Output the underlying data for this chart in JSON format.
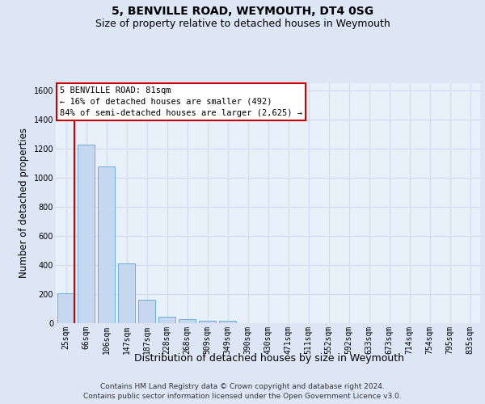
{
  "title": "5, BENVILLE ROAD, WEYMOUTH, DT4 0SG",
  "subtitle": "Size of property relative to detached houses in Weymouth",
  "xlabel": "Distribution of detached houses by size in Weymouth",
  "ylabel": "Number of detached properties",
  "categories": [
    "25sqm",
    "66sqm",
    "106sqm",
    "147sqm",
    "187sqm",
    "228sqm",
    "268sqm",
    "309sqm",
    "349sqm",
    "390sqm",
    "430sqm",
    "471sqm",
    "511sqm",
    "552sqm",
    "592sqm",
    "633sqm",
    "673sqm",
    "714sqm",
    "754sqm",
    "795sqm",
    "835sqm"
  ],
  "values": [
    205,
    1225,
    1075,
    410,
    160,
    45,
    27,
    17,
    15,
    0,
    0,
    0,
    0,
    0,
    0,
    0,
    0,
    0,
    0,
    0,
    0
  ],
  "bar_color": "#c5d8ef",
  "bar_edge_color": "#6aaed6",
  "vline_x": 0.425,
  "vline_color": "#cc0000",
  "annotation_text": "5 BENVILLE ROAD: 81sqm\n← 16% of detached houses are smaller (492)\n84% of semi-detached houses are larger (2,625) →",
  "ylim": [
    0,
    1650
  ],
  "yticks": [
    0,
    200,
    400,
    600,
    800,
    1000,
    1200,
    1400,
    1600
  ],
  "footer1": "Contains HM Land Registry data © Crown copyright and database right 2024.",
  "footer2": "Contains public sector information licensed under the Open Government Licence v3.0.",
  "bg_color": "#dce6f5",
  "plot_bg_color": "#e8f0fa",
  "grid_color": "#d0dcee",
  "title_fontsize": 10,
  "subtitle_fontsize": 9,
  "ylabel_fontsize": 8.5,
  "xlabel_fontsize": 9,
  "tick_fontsize": 7,
  "footer_fontsize": 6.5,
  "ann_fontsize": 7.5
}
